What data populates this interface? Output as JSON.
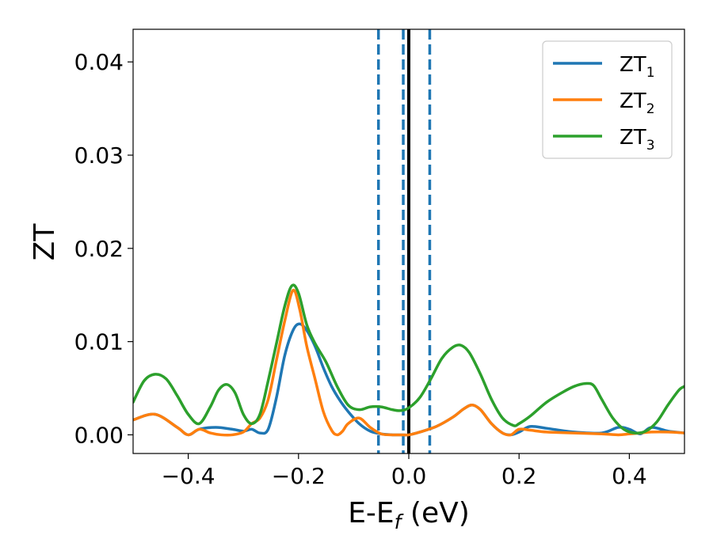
{
  "chart_data": {
    "type": "line",
    "xlabel": "E-E",
    "xlabel_sub": "f",
    "xlabel_unit": " (eV)",
    "ylabel": "ZT",
    "xlim": [
      -0.5,
      0.5
    ],
    "ylim": [
      -0.002,
      0.0435
    ],
    "xticks": [
      -0.4,
      -0.2,
      0.0,
      0.2,
      0.4
    ],
    "xtick_labels": [
      "−0.4",
      "−0.2",
      "0.0",
      "0.2",
      "0.4"
    ],
    "yticks": [
      0.0,
      0.01,
      0.02,
      0.03,
      0.04
    ],
    "ytick_labels": [
      "0.00",
      "0.01",
      "0.02",
      "0.03",
      "0.04"
    ],
    "grid": false,
    "legend_position": "top-right",
    "vlines": [
      {
        "x": -0.055,
        "style": "dashed",
        "color": "#1f77b4"
      },
      {
        "x": -0.01,
        "style": "dashed",
        "color": "#1f77b4"
      },
      {
        "x": 0.038,
        "style": "dashed",
        "color": "#1f77b4"
      },
      {
        "x": 0.0,
        "style": "solid",
        "color": "#000000"
      }
    ],
    "series": [
      {
        "name": "ZT",
        "sub": "1",
        "color": "#1f77b4",
        "x": [
          -0.5,
          -0.46,
          -0.42,
          -0.4,
          -0.38,
          -0.35,
          -0.32,
          -0.3,
          -0.285,
          -0.27,
          -0.255,
          -0.24,
          -0.225,
          -0.21,
          -0.198,
          -0.185,
          -0.17,
          -0.155,
          -0.14,
          -0.125,
          -0.11,
          -0.09,
          -0.07,
          -0.05,
          -0.03,
          -0.01,
          0.0,
          0.02,
          0.05,
          0.08,
          0.1,
          0.115,
          0.13,
          0.15,
          0.17,
          0.185,
          0.2,
          0.22,
          0.25,
          0.3,
          0.35,
          0.38,
          0.4,
          0.42,
          0.44,
          0.47,
          0.5
        ],
        "y": [
          0.0016,
          0.0022,
          0.0008,
          0.0,
          0.0006,
          0.0008,
          0.0006,
          0.0004,
          0.0006,
          0.0002,
          0.0006,
          0.004,
          0.0085,
          0.0112,
          0.0119,
          0.0112,
          0.0095,
          0.0072,
          0.0052,
          0.0037,
          0.0025,
          0.0012,
          0.0004,
          0.0001,
          0.0,
          0.0,
          0.0,
          0.0003,
          0.0009,
          0.0019,
          0.0028,
          0.0032,
          0.0027,
          0.0012,
          0.0002,
          0.0,
          0.0003,
          0.0009,
          0.0007,
          0.0003,
          0.0002,
          0.0008,
          0.0006,
          0.0001,
          0.0008,
          0.0004,
          0.0002
        ]
      },
      {
        "name": "ZT",
        "sub": "2",
        "color": "#ff7f0e",
        "x": [
          -0.5,
          -0.46,
          -0.42,
          -0.4,
          -0.38,
          -0.36,
          -0.34,
          -0.32,
          -0.3,
          -0.285,
          -0.27,
          -0.255,
          -0.24,
          -0.225,
          -0.21,
          -0.198,
          -0.185,
          -0.17,
          -0.155,
          -0.14,
          -0.13,
          -0.12,
          -0.11,
          -0.09,
          -0.07,
          -0.05,
          -0.03,
          -0.01,
          0.0,
          0.02,
          0.05,
          0.08,
          0.1,
          0.115,
          0.13,
          0.15,
          0.17,
          0.185,
          0.2,
          0.22,
          0.25,
          0.3,
          0.35,
          0.38,
          0.4,
          0.42,
          0.44,
          0.47,
          0.5
        ],
        "y": [
          0.0016,
          0.0022,
          0.0008,
          0.0,
          0.0006,
          0.0002,
          0.0,
          0.0,
          0.0003,
          0.0012,
          0.0018,
          0.0038,
          0.008,
          0.0122,
          0.0155,
          0.0135,
          0.0095,
          0.006,
          0.0025,
          0.0005,
          0.0,
          0.0004,
          0.0012,
          0.0018,
          0.0008,
          0.0001,
          0.0,
          0.0,
          0.0,
          0.0003,
          0.0009,
          0.0019,
          0.0028,
          0.0032,
          0.0027,
          0.0012,
          0.0002,
          0.0,
          0.0006,
          0.0005,
          0.0003,
          0.0002,
          0.0001,
          0.0,
          0.0001,
          0.0002,
          0.0003,
          0.0003,
          0.0002
        ]
      },
      {
        "name": "ZT",
        "sub": "3",
        "color": "#2ca02c",
        "x": [
          -0.5,
          -0.48,
          -0.46,
          -0.44,
          -0.42,
          -0.4,
          -0.38,
          -0.36,
          -0.345,
          -0.33,
          -0.315,
          -0.3,
          -0.285,
          -0.27,
          -0.255,
          -0.24,
          -0.225,
          -0.212,
          -0.2,
          -0.185,
          -0.17,
          -0.15,
          -0.13,
          -0.11,
          -0.09,
          -0.07,
          -0.05,
          -0.03,
          -0.015,
          0.0,
          0.02,
          0.04,
          0.06,
          0.08,
          0.095,
          0.11,
          0.13,
          0.15,
          0.17,
          0.19,
          0.2,
          0.22,
          0.25,
          0.28,
          0.3,
          0.32,
          0.335,
          0.35,
          0.37,
          0.39,
          0.41,
          0.43,
          0.45,
          0.47,
          0.49,
          0.5
        ],
        "y": [
          0.0035,
          0.0058,
          0.0065,
          0.006,
          0.0042,
          0.0022,
          0.0012,
          0.003,
          0.0048,
          0.0054,
          0.0045,
          0.0022,
          0.0012,
          0.0022,
          0.0058,
          0.0098,
          0.0138,
          0.016,
          0.0152,
          0.0118,
          0.0098,
          0.0078,
          0.0052,
          0.0032,
          0.0027,
          0.003,
          0.003,
          0.0027,
          0.0026,
          0.0029,
          0.004,
          0.006,
          0.0082,
          0.0094,
          0.0096,
          0.0088,
          0.0065,
          0.0038,
          0.0018,
          0.001,
          0.0012,
          0.002,
          0.0035,
          0.0046,
          0.0052,
          0.0055,
          0.0053,
          0.0038,
          0.0018,
          0.0006,
          0.0002,
          0.0004,
          0.0014,
          0.0032,
          0.0048,
          0.0052
        ]
      }
    ]
  }
}
